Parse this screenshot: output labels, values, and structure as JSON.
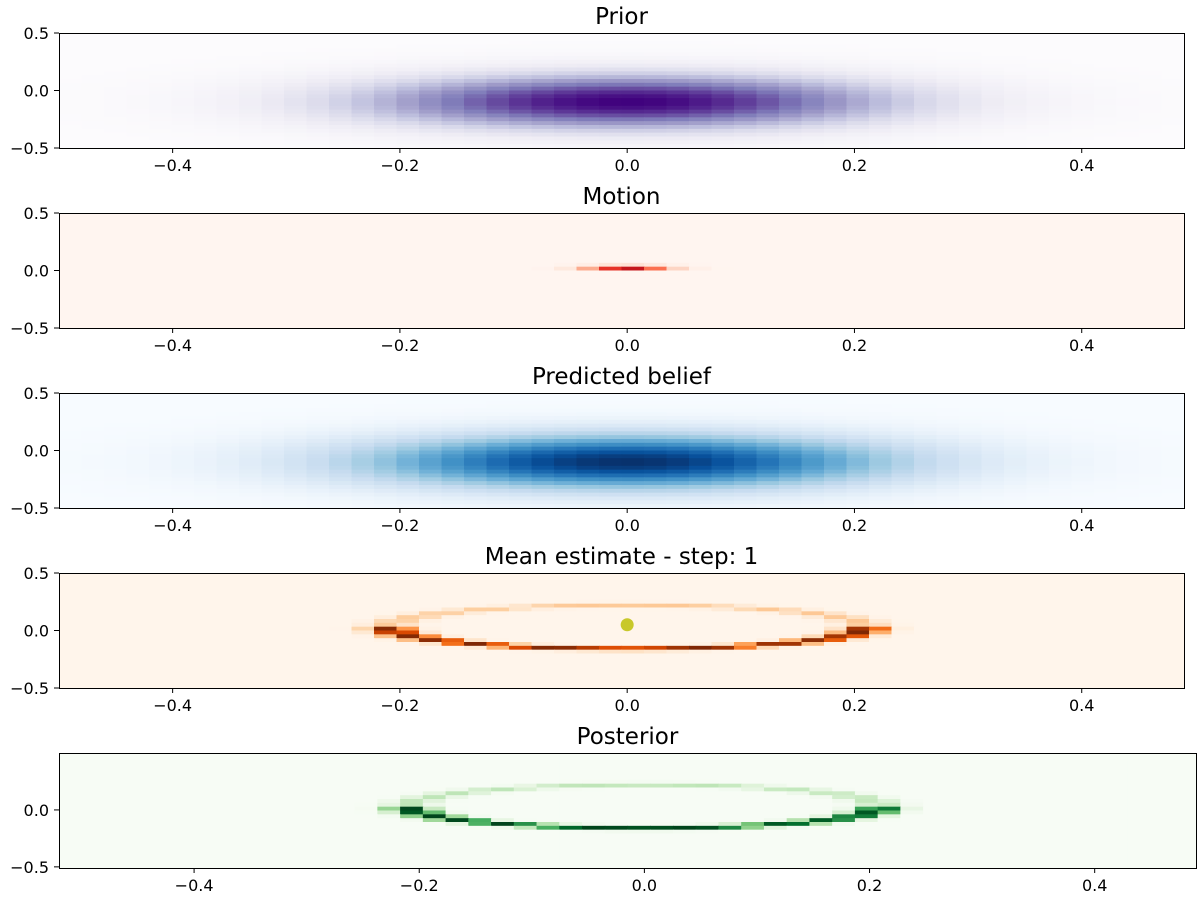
{
  "chart_data": [
    {
      "type": "heatmap",
      "title": "Prior",
      "colormap": "purples",
      "xlim": [
        -0.5,
        0.49
      ],
      "ylim": [
        -0.5,
        0.5
      ],
      "xticks": [
        "−0.4",
        "−0.2",
        "0.0",
        "0.2",
        "0.4"
      ],
      "yticks": [
        "−0.5",
        "0.0",
        "0.5"
      ],
      "distribution": {
        "kind": "gaussian",
        "center": [
          0.0,
          -0.1
        ],
        "sigma": [
          0.16,
          0.16
        ]
      }
    },
    {
      "type": "heatmap",
      "title": "Motion",
      "colormap": "reds",
      "xlim": [
        -0.5,
        0.49
      ],
      "ylim": [
        -0.5,
        0.5
      ],
      "xticks": [
        "−0.4",
        "−0.2",
        "0.0",
        "0.2",
        "0.4"
      ],
      "yticks": [
        "−0.5",
        "0.0",
        "0.5"
      ],
      "distribution": {
        "kind": "gaussian",
        "center": [
          0.0,
          0.025
        ],
        "sigma": [
          0.025,
          0.012
        ]
      }
    },
    {
      "type": "heatmap",
      "title": "Predicted belief",
      "colormap": "blues",
      "xlim": [
        -0.5,
        0.49
      ],
      "ylim": [
        -0.5,
        0.5
      ],
      "xticks": [
        "−0.4",
        "−0.2",
        "0.0",
        "0.2",
        "0.4"
      ],
      "yticks": [
        "−0.5",
        "0.0",
        "0.5"
      ],
      "distribution": {
        "kind": "gaussian",
        "center": [
          0.0,
          -0.1
        ],
        "sigma": [
          0.16,
          0.16
        ]
      }
    },
    {
      "type": "heatmap",
      "title": "Mean estimate - step: 1",
      "colormap": "oranges",
      "xlim": [
        -0.5,
        0.49
      ],
      "ylim": [
        -0.5,
        0.5
      ],
      "xticks": [
        "−0.4",
        "−0.2",
        "0.0",
        "0.2",
        "0.4"
      ],
      "yticks": [
        "−0.5",
        "0.0",
        "0.5"
      ],
      "distribution": {
        "kind": "ellipse",
        "center": [
          0.0,
          0.03
        ],
        "radius": [
          0.21,
          0.19
        ],
        "ring_width": 0.012
      },
      "mean_marker": {
        "x": 0.0,
        "y": 0.05,
        "color": "#c8c82a"
      }
    },
    {
      "type": "heatmap",
      "title": "Posterior",
      "colormap": "greens",
      "xlim": [
        -0.52,
        0.49
      ],
      "ylim": [
        -0.51,
        0.5
      ],
      "xticks": [
        "−0.4",
        "−0.2",
        "0.0",
        "0.2",
        "0.4"
      ],
      "yticks": [
        "−0.5",
        "0.0"
      ],
      "distribution": {
        "kind": "ellipse",
        "center": [
          0.0,
          0.03
        ],
        "radius": [
          0.21,
          0.19
        ],
        "ring_width": 0.012
      }
    }
  ]
}
